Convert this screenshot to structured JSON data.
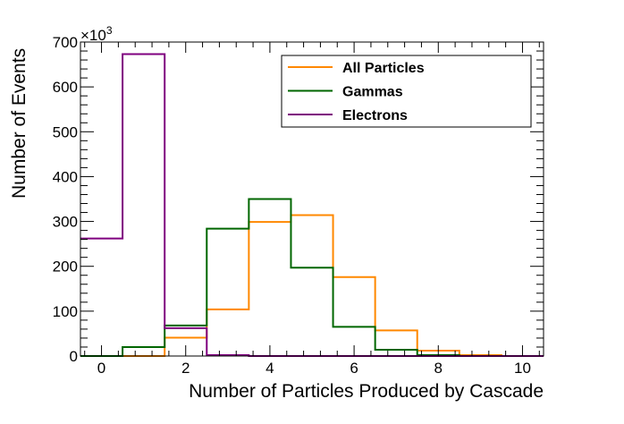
{
  "chart_data": {
    "type": "step-histogram",
    "xlabel": "Number of Particles Produced by Cascade",
    "ylabel": "Number of Events",
    "y_multiplier": "×10",
    "y_multiplier_exp": "3",
    "xlim": [
      -0.5,
      10.5
    ],
    "ylim": [
      0,
      700
    ],
    "x_ticks": [
      0,
      2,
      4,
      6,
      8,
      10
    ],
    "y_ticks": [
      0,
      100,
      200,
      300,
      400,
      500,
      600,
      700
    ],
    "bin_edges": [
      -0.5,
      0.5,
      1.5,
      2.5,
      3.5,
      4.5,
      5.5,
      6.5,
      7.5,
      8.5,
      9.5,
      10.5
    ],
    "grid": false,
    "legend_position": "top-right",
    "series": [
      {
        "name": "All Particles",
        "color": "#ff8800",
        "values": [
          0,
          0,
          41,
          104,
          299,
          314,
          176,
          57,
          12,
          2,
          0
        ]
      },
      {
        "name": "Gammas",
        "color": "#006600",
        "values": [
          0,
          20,
          68,
          284,
          350,
          197,
          65,
          14,
          2,
          0,
          0
        ]
      },
      {
        "name": "Electrons",
        "color": "#7f007f",
        "values": [
          262,
          673,
          62,
          2,
          0,
          0,
          0,
          0,
          0,
          0,
          0
        ]
      }
    ]
  }
}
